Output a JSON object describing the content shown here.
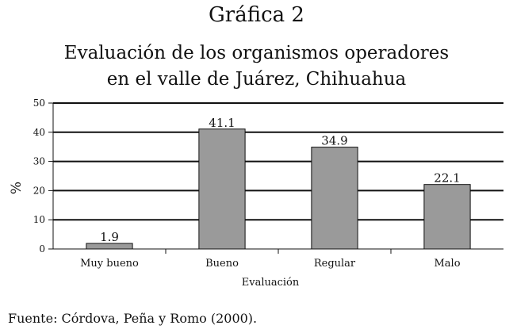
{
  "figure_label": "Gráfica 2",
  "source": "Fuente: Córdova, Peña y Romo (2000).",
  "chart_data": {
    "type": "bar",
    "title": "Evaluación de los organismos operadores",
    "subtitle": "en el valle de Juárez, Chihuahua",
    "categories": [
      "Muy bueno",
      "Bueno",
      "Regular",
      "Malo"
    ],
    "values": [
      1.9,
      41.1,
      34.9,
      22.1
    ],
    "data_labels": [
      "1.9",
      "41.1",
      "34.9",
      "22.1"
    ],
    "xlabel": "Evaluación",
    "ylabel": "%",
    "ylim": [
      0,
      50
    ],
    "yticks": [
      0,
      10,
      20,
      30,
      40,
      50
    ],
    "grid": true,
    "bar_color": "#9a9a9a",
    "legend": "none"
  }
}
